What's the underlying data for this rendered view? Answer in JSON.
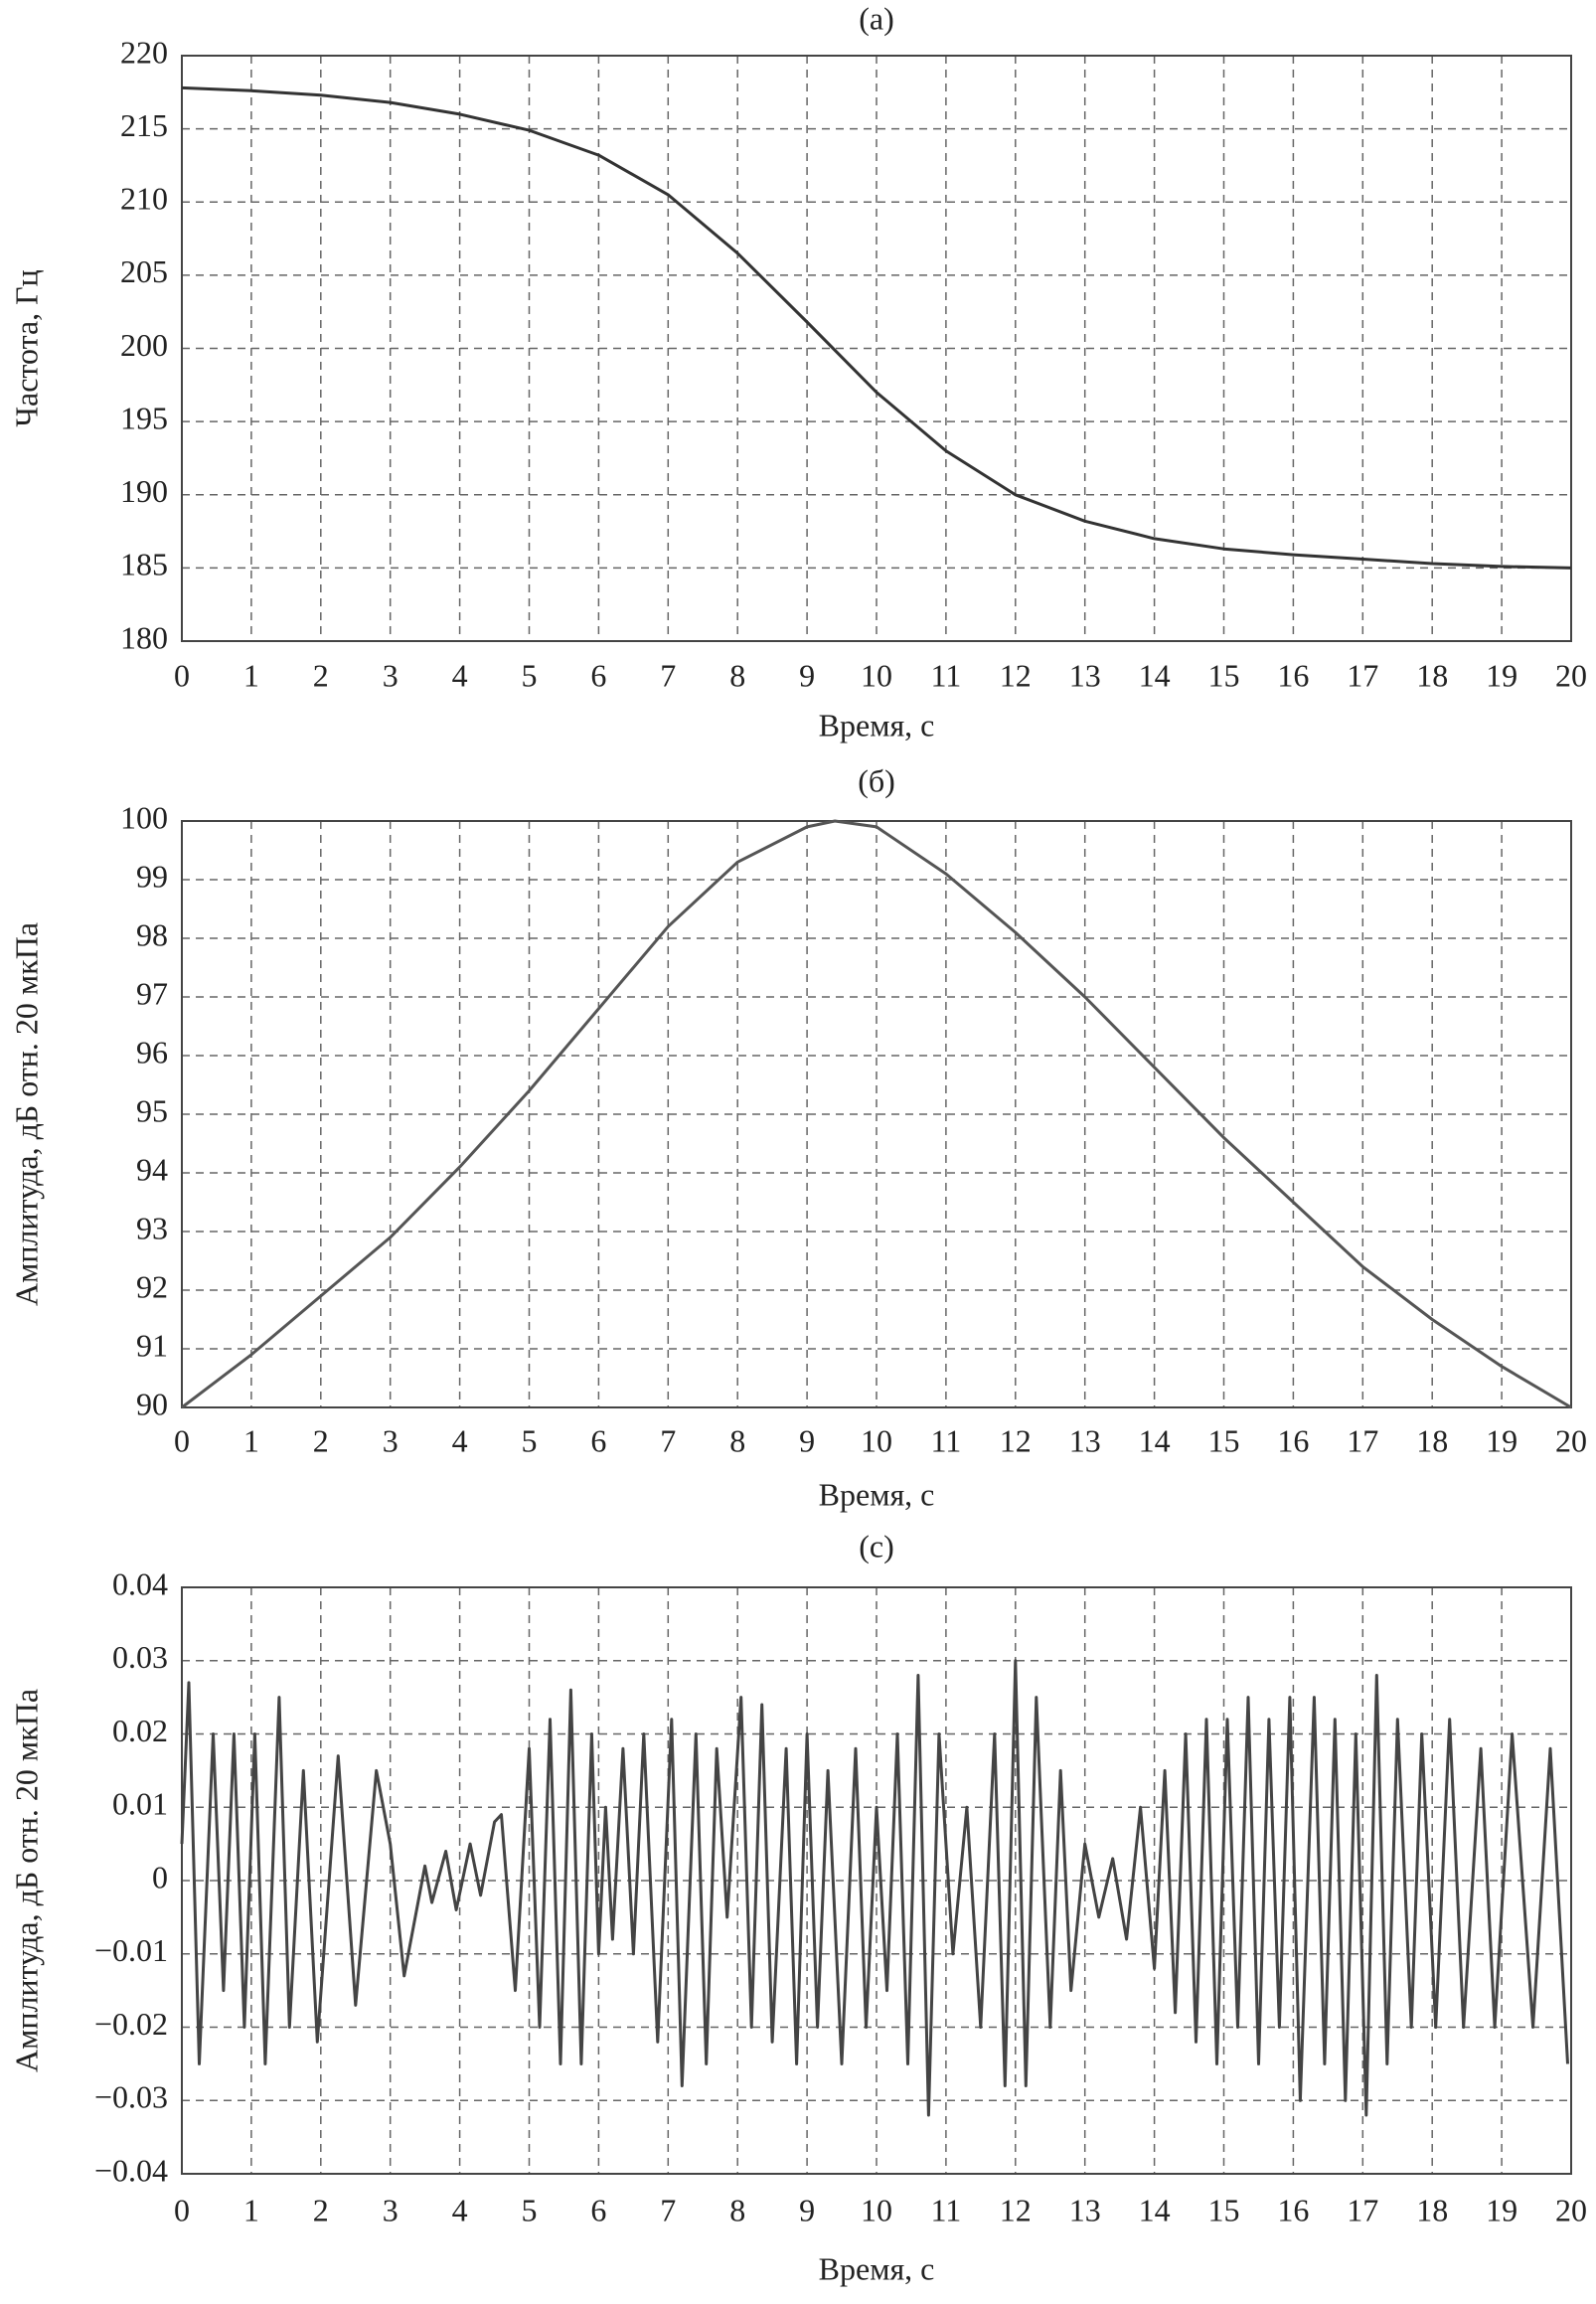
{
  "chart_data": [
    {
      "type": "line",
      "title": "(a)",
      "xlabel": "Время, с",
      "ylabel": "Частота, Гц",
      "x": [
        0,
        1,
        2,
        3,
        4,
        5,
        6,
        7,
        8,
        9,
        10,
        11,
        12,
        13,
        14,
        15,
        16,
        17,
        18,
        19,
        20
      ],
      "series": [
        {
          "color": "#333333",
          "values": [
            217.8,
            217.6,
            217.3,
            216.8,
            216.0,
            214.9,
            213.2,
            210.5,
            206.5,
            201.8,
            197.0,
            193.0,
            190.0,
            188.2,
            187.0,
            186.3,
            185.9,
            185.6,
            185.3,
            185.1,
            185.0
          ]
        }
      ],
      "xlim": [
        0,
        20
      ],
      "xticks": [
        0,
        1,
        2,
        3,
        4,
        5,
        6,
        7,
        8,
        9,
        10,
        11,
        12,
        13,
        14,
        15,
        16,
        17,
        18,
        19,
        20
      ],
      "ylim": [
        180,
        220
      ],
      "yticks": [
        180,
        185,
        190,
        195,
        200,
        205,
        210,
        215,
        220
      ],
      "grid": true
    },
    {
      "type": "line",
      "title": "(б)",
      "xlabel": "Время, с",
      "ylabel": "Амплитуда, дБ отн. 20 мкПа",
      "x": [
        0,
        1,
        2,
        3,
        4,
        5,
        6,
        7,
        8,
        9,
        9.4,
        10,
        11,
        12,
        13,
        14,
        15,
        16,
        17,
        18,
        19,
        20
      ],
      "series": [
        {
          "color": "#555555",
          "values": [
            90.0,
            90.9,
            91.9,
            92.9,
            94.1,
            95.4,
            96.8,
            98.2,
            99.3,
            99.9,
            100.0,
            99.9,
            99.1,
            98.1,
            97.0,
            95.8,
            94.6,
            93.5,
            92.4,
            91.5,
            90.7,
            90.0
          ]
        }
      ],
      "xlim": [
        0,
        20
      ],
      "xticks": [
        0,
        1,
        2,
        3,
        4,
        5,
        6,
        7,
        8,
        9,
        10,
        11,
        12,
        13,
        14,
        15,
        16,
        17,
        18,
        19,
        20
      ],
      "ylim": [
        90,
        100
      ],
      "yticks": [
        90,
        91,
        92,
        93,
        94,
        95,
        96,
        97,
        98,
        99,
        100
      ],
      "grid": true
    },
    {
      "type": "line",
      "title": "(с)",
      "xlabel": "Время, с",
      "ylabel": "Амплитуда, дБ отн. 20 мкПа",
      "x": [
        0,
        0.1,
        0.25,
        0.45,
        0.6,
        0.75,
        0.9,
        1.05,
        1.2,
        1.4,
        1.55,
        1.75,
        1.95,
        2.25,
        2.5,
        2.8,
        3.0,
        3.2,
        3.5,
        3.6,
        3.8,
        3.95,
        4.15,
        4.3,
        4.5,
        4.6,
        4.8,
        5.0,
        5.15,
        5.3,
        5.45,
        5.6,
        5.75,
        5.9,
        6.0,
        6.1,
        6.2,
        6.35,
        6.5,
        6.65,
        6.85,
        7.05,
        7.2,
        7.4,
        7.55,
        7.7,
        7.85,
        8.05,
        8.2,
        8.35,
        8.5,
        8.7,
        8.85,
        9.0,
        9.15,
        9.3,
        9.5,
        9.7,
        9.85,
        10.0,
        10.15,
        10.3,
        10.45,
        10.6,
        10.75,
        10.9,
        11.1,
        11.3,
        11.5,
        11.7,
        11.85,
        12.0,
        12.15,
        12.3,
        12.5,
        12.65,
        12.8,
        13.0,
        13.2,
        13.4,
        13.6,
        13.8,
        14.0,
        14.15,
        14.3,
        14.45,
        14.6,
        14.75,
        14.9,
        15.05,
        15.2,
        15.35,
        15.5,
        15.65,
        15.8,
        15.95,
        16.1,
        16.3,
        16.45,
        16.6,
        16.75,
        16.9,
        17.05,
        17.2,
        17.35,
        17.5,
        17.7,
        17.85,
        18.05,
        18.25,
        18.45,
        18.7,
        18.9,
        19.15,
        19.45,
        19.7,
        19.95
      ],
      "series": [
        {
          "color": "#444444",
          "values": [
            0.005,
            0.027,
            -0.025,
            0.02,
            -0.015,
            0.02,
            -0.02,
            0.02,
            -0.025,
            0.025,
            -0.02,
            0.015,
            -0.022,
            0.017,
            -0.017,
            0.015,
            0.005,
            -0.013,
            0.002,
            -0.003,
            0.004,
            -0.004,
            0.005,
            -0.002,
            0.008,
            0.009,
            -0.015,
            0.018,
            -0.02,
            0.022,
            -0.025,
            0.026,
            -0.025,
            0.02,
            -0.01,
            0.01,
            -0.008,
            0.018,
            -0.01,
            0.02,
            -0.022,
            0.022,
            -0.028,
            0.02,
            -0.025,
            0.018,
            -0.005,
            0.025,
            -0.02,
            0.024,
            -0.022,
            0.018,
            -0.025,
            0.02,
            -0.02,
            0.015,
            -0.025,
            0.018,
            -0.02,
            0.01,
            -0.015,
            0.02,
            -0.025,
            0.028,
            -0.032,
            0.02,
            -0.01,
            0.01,
            -0.02,
            0.02,
            -0.028,
            0.03,
            -0.028,
            0.025,
            -0.02,
            0.015,
            -0.015,
            0.005,
            -0.005,
            0.003,
            -0.008,
            0.01,
            -0.012,
            0.015,
            -0.018,
            0.02,
            -0.022,
            0.022,
            -0.025,
            0.022,
            -0.02,
            0.025,
            -0.025,
            0.022,
            -0.02,
            0.025,
            -0.03,
            0.025,
            -0.025,
            0.022,
            -0.03,
            0.02,
            -0.032,
            0.028,
            -0.025,
            0.022,
            -0.02,
            0.02,
            -0.02,
            0.022,
            -0.02,
            0.018,
            -0.02,
            0.02,
            -0.02,
            0.018,
            -0.025
          ]
        }
      ],
      "xlim": [
        0,
        20
      ],
      "xticks": [
        0,
        1,
        2,
        3,
        4,
        5,
        6,
        7,
        8,
        9,
        10,
        11,
        12,
        13,
        14,
        15,
        16,
        17,
        18,
        19,
        20
      ],
      "ylim": [
        -0.04,
        0.04
      ],
      "yticks": [
        {
          "value": -0.04,
          "label": "−0.04"
        },
        {
          "value": -0.03,
          "label": "−0.03"
        },
        {
          "value": -0.02,
          "label": "−0.02"
        },
        {
          "value": -0.01,
          "label": "−0.01"
        },
        0,
        0.01,
        0.02,
        0.03,
        0.04
      ],
      "grid": true
    }
  ]
}
